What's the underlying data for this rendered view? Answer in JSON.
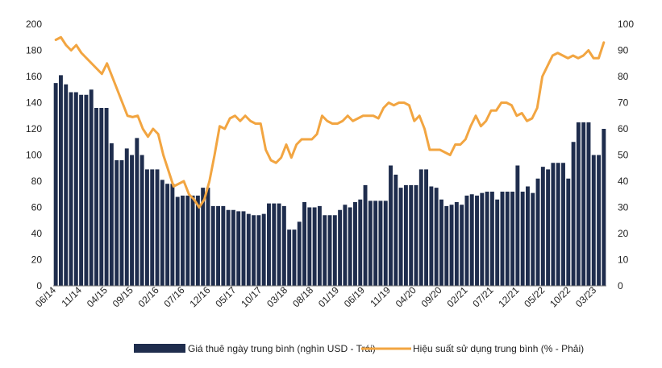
{
  "chart_data": {
    "type": "bar+line",
    "title": "",
    "x_tick_labels": [
      "06/14",
      "11/14",
      "04/15",
      "09/15",
      "02/16",
      "07/16",
      "12/16",
      "05/17",
      "10/17",
      "03/18",
      "08/18",
      "01/19",
      "06/19",
      "11/19",
      "04/20",
      "09/20",
      "02/21",
      "07/21",
      "12/21",
      "05/22",
      "10/22",
      "03/23"
    ],
    "left_axis": {
      "min": 0,
      "max": 200,
      "step": 20,
      "ticks": [
        "0",
        "20",
        "40",
        "60",
        "80",
        "100",
        "120",
        "140",
        "160",
        "180",
        "200"
      ]
    },
    "right_axis": {
      "min": 0,
      "max": 100,
      "step": 10,
      "ticks": [
        "0",
        "10",
        "20",
        "30",
        "40",
        "50",
        "60",
        "70",
        "80",
        "90",
        "100"
      ]
    },
    "series": [
      {
        "name": "Giá thuê ngày trung bình (nghìn USD - Trái)",
        "type": "bar",
        "axis": "left",
        "color": "#1f2d4d",
        "values": [
          155,
          161,
          154,
          148,
          148,
          146,
          146,
          150,
          136,
          136,
          136,
          109,
          96,
          96,
          105,
          100,
          113,
          100,
          89,
          89,
          89,
          81,
          78,
          78,
          68,
          69,
          69,
          69,
          69,
          75,
          75,
          61,
          61,
          61,
          58,
          58,
          57,
          57,
          55,
          54,
          54,
          55,
          63,
          63,
          63,
          61,
          43,
          43,
          49,
          64,
          60,
          60,
          61,
          54,
          54,
          54,
          58,
          62,
          60,
          64,
          66,
          77,
          65,
          65,
          65,
          65,
          92,
          85,
          75,
          77,
          77,
          77,
          89,
          89,
          76,
          75,
          66,
          61,
          62,
          64,
          62,
          69,
          70,
          69,
          71,
          72,
          72,
          66,
          72,
          72,
          72,
          92,
          72,
          76,
          71,
          82,
          91,
          89,
          94,
          94,
          94,
          82,
          110,
          125,
          125,
          125,
          100,
          100,
          120
        ]
      },
      {
        "name": "Hiệu suất sử dụng trung bình (% - Phải)",
        "type": "line",
        "axis": "right",
        "color": "#f2a541",
        "values": [
          94,
          95,
          92,
          90,
          92,
          89,
          87,
          85,
          83,
          81,
          85,
          80,
          75,
          70,
          65,
          64.5,
          65,
          60,
          57,
          60,
          58,
          50,
          44,
          38,
          39,
          40,
          35,
          33,
          30,
          33,
          40,
          50,
          61,
          60,
          64,
          65,
          63,
          65,
          63,
          62,
          62,
          52,
          48,
          47,
          49,
          54,
          49,
          54,
          56,
          56,
          56,
          58,
          65,
          63,
          62,
          62,
          63,
          65,
          63,
          64,
          65,
          65,
          65,
          64,
          68,
          70,
          69,
          70,
          70,
          69,
          63,
          65,
          60,
          52,
          52,
          52,
          51,
          50,
          54,
          54,
          56,
          61,
          65,
          61,
          63,
          67,
          67,
          70,
          70,
          69,
          65,
          66,
          63,
          64,
          68,
          80,
          84,
          88,
          89,
          88,
          87,
          88,
          87,
          88,
          90,
          87,
          87,
          93
        ]
      }
    ]
  }
}
